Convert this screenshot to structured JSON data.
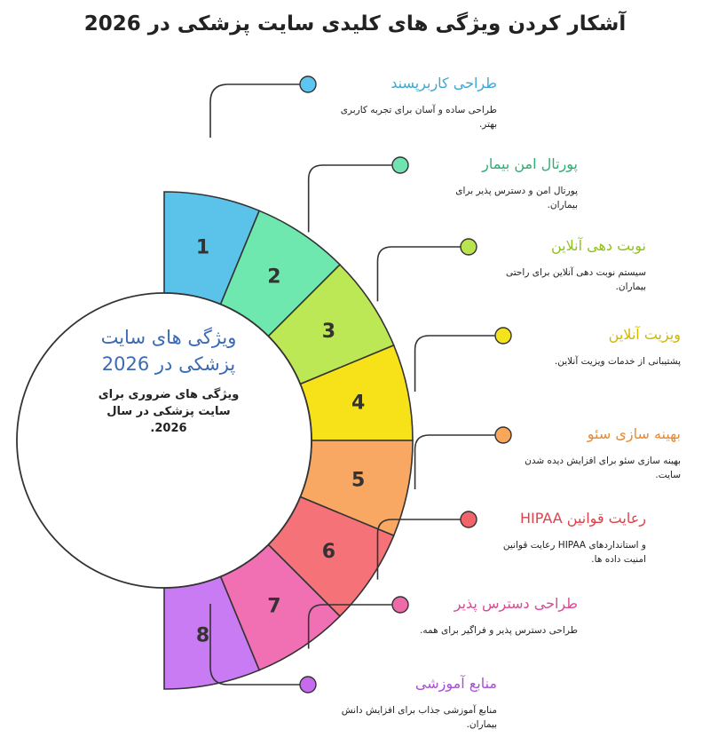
{
  "title": "آشکار کردن ویژگی های کلیدی سایت پزشکی در 2026",
  "center": {
    "title_line1": "ویژگی های سایت",
    "title_line2": "پزشکی در 2026",
    "desc_line1": "ویژگی های ضروری برای",
    "desc_line2": "سایت پزشکی در سال",
    "desc_line3": "2026."
  },
  "colors": {
    "dot_1": "#5cc6f0",
    "dot_2": "#6fe4b0",
    "dot_3": "#b9e44e",
    "dot_4": "#f4e21d",
    "dot_5": "#f8a65a",
    "dot_6": "#f1646a",
    "dot_7": "#ee6aa8",
    "dot_8": "#c66aee"
  },
  "items": [
    {
      "num": "1",
      "title": "طراحی کاربرپسند",
      "desc_line1": "طراحی ساده و آسان برای تجربه کاربری",
      "desc_line2": "بهتر.",
      "fill": "#5bc3ea",
      "dot": "#5cc6f0",
      "color": "#3da8d6"
    },
    {
      "num": "2",
      "title": "پورتال امن بیمار",
      "desc_line1": "پورتال امن و دسترس پذیر برای",
      "desc_line2": "بیماران.",
      "fill": "#6fe8b0",
      "dot": "#6fe4b0",
      "color": "#2fae72"
    },
    {
      "num": "3",
      "title": "نوبت دهی آنلاین",
      "desc_line1": "سیستم نوبت دهی آنلاین برای راحتی",
      "desc_line2": "بیماران.",
      "fill": "#bde855",
      "dot": "#b9e44e",
      "color": "#90c21c"
    },
    {
      "num": "4",
      "title": "ویزیت آنلاین",
      "desc_line1": "پشتیبانی از خدمات ویزیت آنلاین.",
      "desc_line2": "",
      "fill": "#f7e21a",
      "dot": "#f4e21d",
      "color": "#d1b800"
    },
    {
      "num": "5",
      "title": "بهینه سازی سئو",
      "desc_line1": "بهینه سازی سئو برای افزایش دیده شدن",
      "desc_line2": "سایت.",
      "fill": "#f8a862",
      "dot": "#f8a65a",
      "color": "#e98a30"
    },
    {
      "num": "6",
      "title": "رعایت قوانین HIPAA",
      "desc_line1": "و استانداردهای HIPAA رعایت قوانین",
      "desc_line2": "امنیت داده ها.",
      "fill": "#f47278",
      "dot": "#f1646a",
      "color": "#e0414a"
    },
    {
      "num": "7",
      "title": "طراحی دسترس پذیر",
      "desc_line1": "طراحی دسترس پذیر و فراگیر برای همه.",
      "desc_line2": "",
      "fill": "#f170b4",
      "dot": "#ee6aa8",
      "color": "#d94b94"
    },
    {
      "num": "8",
      "title": "منابع آموزشی",
      "desc_line1": "منابع آموزشی جذاب برای افزایش دانش",
      "desc_line2": "بیماران.",
      "fill": "#c97bf4",
      "dot": "#c66aee",
      "color": "#a74fd6"
    }
  ]
}
